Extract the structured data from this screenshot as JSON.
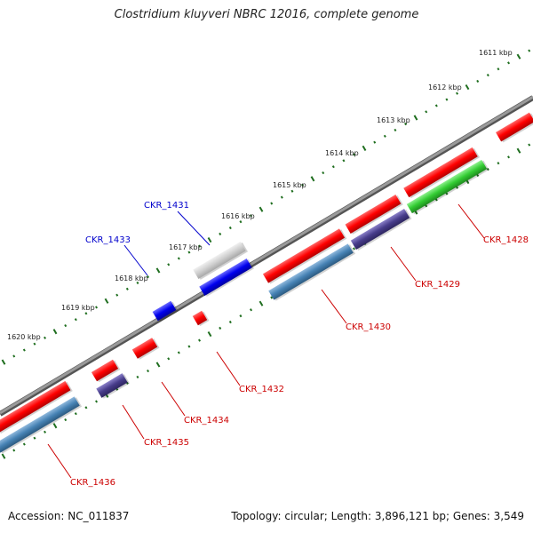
{
  "title": "Clostridium kluyveri NBRC 12016, complete genome",
  "footer": {
    "accession": "Accession: NC_011837",
    "summary": "Topology: circular; Length: 3,896,121 bp; Genes: 3,549"
  },
  "colors": {
    "cds": "#ff0000",
    "rna_blue": "#0000ee",
    "gray_feature": "#c8c8c8",
    "steel": "#4682b4",
    "purple": "#483d8b",
    "green": "#33cc33",
    "backbone": "#808080",
    "tick": "#1a6b1a"
  },
  "scale": {
    "ticks": [
      "1611 kbp",
      "1612 kbp",
      "1613 kbp",
      "1614 kbp",
      "1615 kbp",
      "1616 kbp",
      "1617 kbp",
      "1618 kbp",
      "1619 kbp",
      "1620 kbp"
    ]
  },
  "genes": [
    {
      "name": "CKR_1428",
      "color": "#cc0000"
    },
    {
      "name": "CKR_1429",
      "color": "#cc0000"
    },
    {
      "name": "CKR_1430",
      "color": "#cc0000"
    },
    {
      "name": "CKR_1431",
      "color": "#0000cc"
    },
    {
      "name": "CKR_1432",
      "color": "#cc0000"
    },
    {
      "name": "CKR_1433",
      "color": "#0000cc"
    },
    {
      "name": "CKR_1434",
      "color": "#cc0000"
    },
    {
      "name": "CKR_1435",
      "color": "#cc0000"
    },
    {
      "name": "CKR_1436",
      "color": "#cc0000"
    }
  ]
}
